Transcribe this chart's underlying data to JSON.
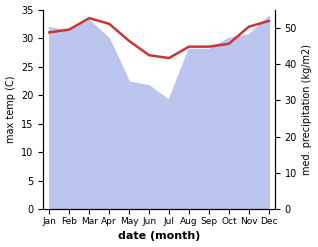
{
  "months": [
    "Jan",
    "Feb",
    "Mar",
    "Apr",
    "May",
    "Jun",
    "Jul",
    "Aug",
    "Sep",
    "Oct",
    "Nov",
    "Dec"
  ],
  "max_temp": [
    31.0,
    31.5,
    33.5,
    32.5,
    29.5,
    27.0,
    26.5,
    28.5,
    28.5,
    29.0,
    32.0,
    33.0
  ],
  "precipitation": [
    50.0,
    49.0,
    52.0,
    47.0,
    35.0,
    34.0,
    30.0,
    44.0,
    44.0,
    47.0,
    48.0,
    53.0
  ],
  "temp_color": "#cc3333",
  "precip_fill_color": "#bbc5ee",
  "ylim_temp": [
    0,
    35
  ],
  "ylim_precip": [
    0,
    55
  ],
  "yticks_temp": [
    0,
    5,
    10,
    15,
    20,
    25,
    30,
    35
  ],
  "yticks_precip": [
    0,
    10,
    20,
    30,
    40,
    50
  ],
  "xlabel": "date (month)",
  "ylabel_left": "max temp (C)",
  "ylabel_right": "med. precipitation (kg/m2)"
}
